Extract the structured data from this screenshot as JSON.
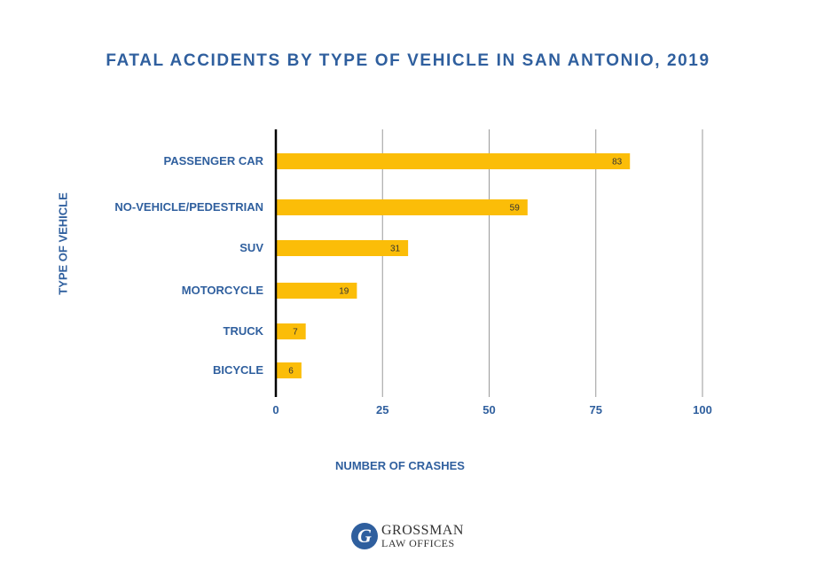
{
  "chart_data": {
    "type": "bar",
    "orientation": "horizontal",
    "title": "FATAL ACCIDENTS BY TYPE OF VEHICLE IN SAN ANTONIO, 2019",
    "xlabel": "NUMBER OF CRASHES",
    "ylabel": "TYPE OF VEHICLE",
    "categories": [
      "PASSENGER CAR",
      "NO-VEHICLE/PEDESTRIAN",
      "SUV",
      "MOTORCYCLE",
      "TRUCK",
      "BICYCLE"
    ],
    "values": [
      83,
      59,
      31,
      19,
      7,
      6
    ],
    "data_labels": [
      "83",
      "59",
      "31",
      "19",
      "7",
      "6"
    ],
    "xlim": [
      0,
      100
    ],
    "xticks": [
      0,
      25,
      50,
      75,
      100
    ],
    "xtick_labels": [
      "0",
      "25",
      "50",
      "75",
      "100"
    ],
    "grid": "vertical",
    "legend": "none",
    "colors": {
      "bar": "#fbbd08",
      "text": "#2f5f9e",
      "grid": "#9a9a9a",
      "axis": "#000000",
      "data_label": "#333333"
    }
  },
  "branding": {
    "logo_letter": "G",
    "logo_line1": "GROSSMAN",
    "logo_line2": "LAW OFFICES"
  }
}
